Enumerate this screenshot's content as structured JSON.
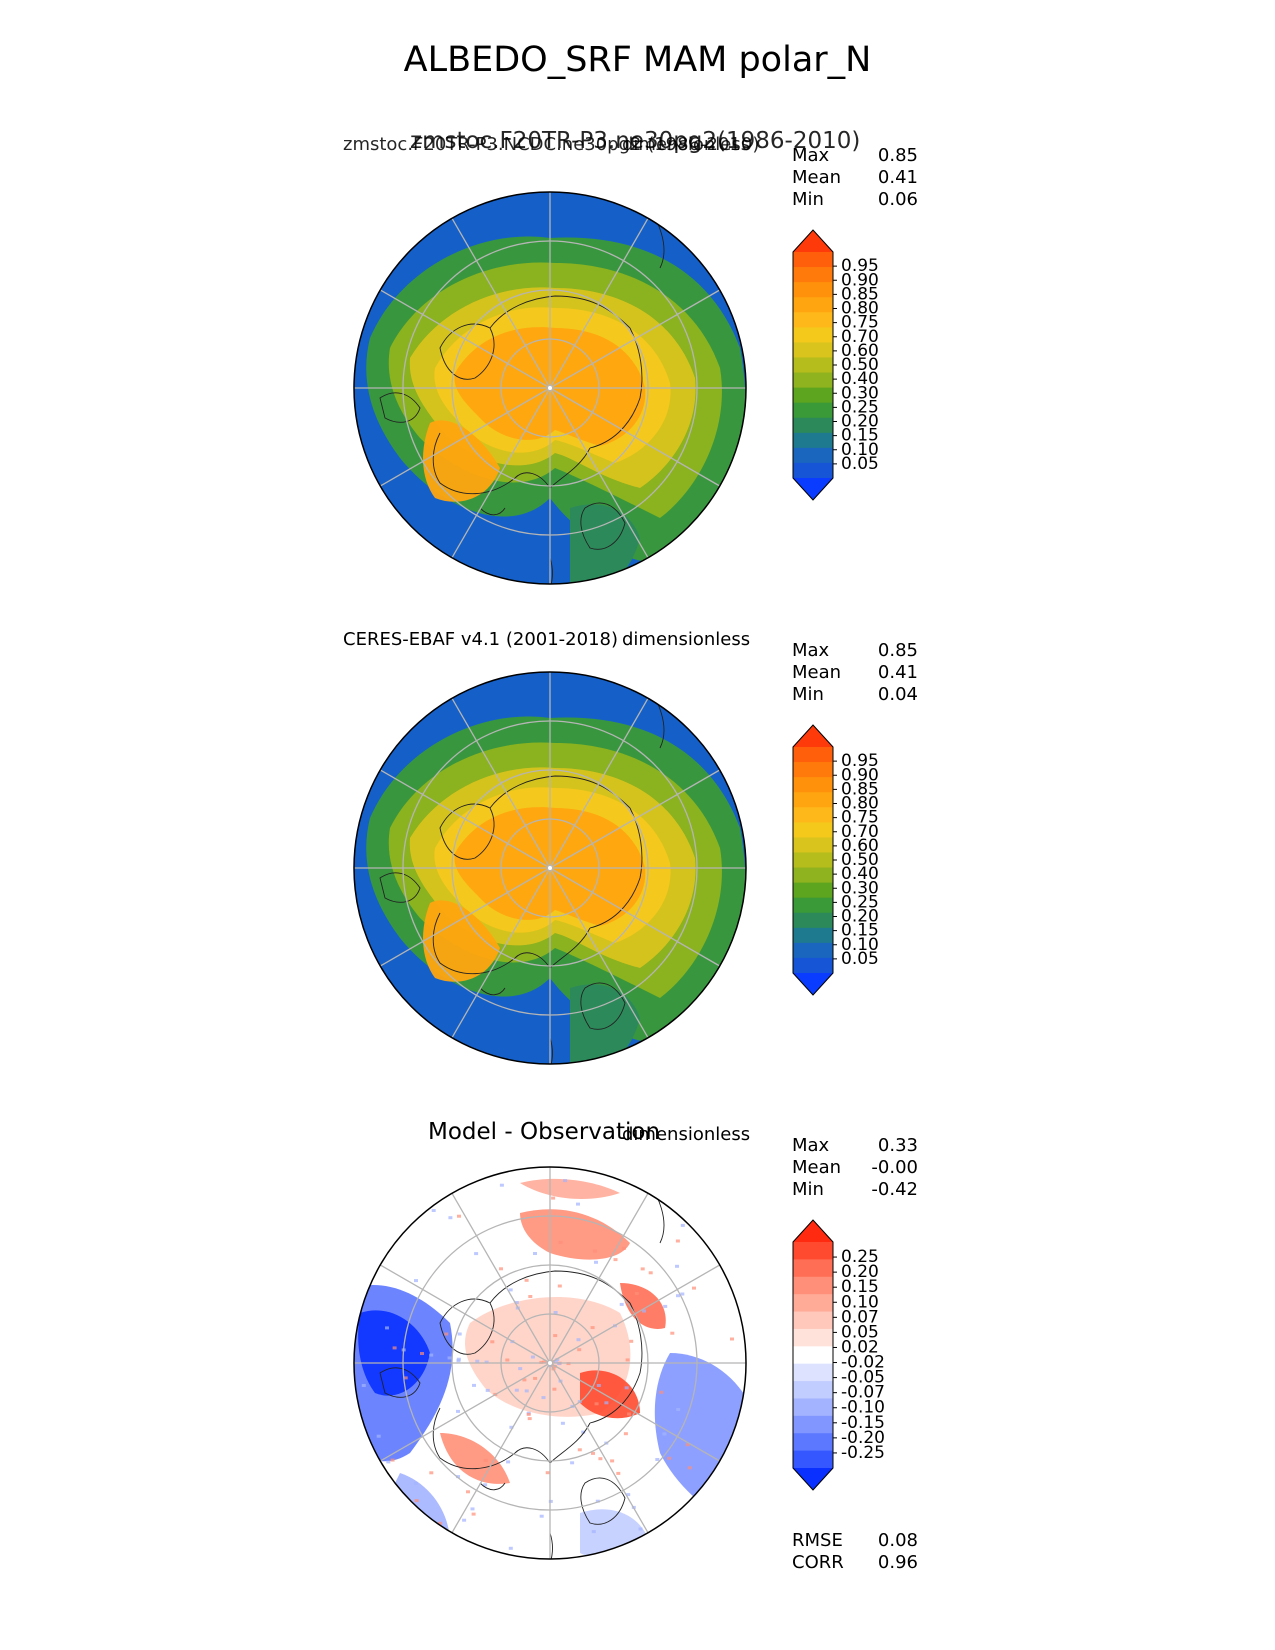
{
  "title": "ALBEDO_SRF MAM polar_N",
  "panels": [
    {
      "title": "zmstoc.F20TR-P3.ne30pg2(1986-2010)",
      "subtitle": "zmstoc.F20TR-P3.NCDC.ne30pg2 (1986-2010)",
      "units": "dimensionless",
      "stats": {
        "max_label": "Max",
        "max": "0.85",
        "mean_label": "Mean",
        "mean": "0.41",
        "min_label": "Min",
        "min": "0.06"
      },
      "colorbar": {
        "ticks": [
          "0.95",
          "0.90",
          "0.85",
          "0.80",
          "0.75",
          "0.70",
          "0.60",
          "0.50",
          "0.40",
          "0.30",
          "0.25",
          "0.20",
          "0.15",
          "0.10",
          "0.05"
        ],
        "colors": [
          "#ff3a0a",
          "#ff5f0a",
          "#ff7a0a",
          "#ff920a",
          "#ffa50f",
          "#ffb81a",
          "#f5c81c",
          "#d9c41d",
          "#b5bd1d",
          "#8fb31e",
          "#5ea51f",
          "#3a9a37",
          "#2c8a5a",
          "#1e7a8e",
          "#1a66bf",
          "#1555d6",
          "#0a3cff"
        ]
      }
    },
    {
      "title": "",
      "subtitle": "CERES-EBAF v4.1 (2001-2018)",
      "units": "dimensionless",
      "stats": {
        "max_label": "Max",
        "max": "0.85",
        "mean_label": "Mean",
        "mean": "0.41",
        "min_label": "Min",
        "min": "0.04"
      },
      "colorbar": {
        "ticks": [
          "0.95",
          "0.90",
          "0.85",
          "0.80",
          "0.75",
          "0.70",
          "0.60",
          "0.50",
          "0.40",
          "0.30",
          "0.25",
          "0.20",
          "0.15",
          "0.10",
          "0.05"
        ],
        "colors": [
          "#ff3a0a",
          "#ff5f0a",
          "#ff7a0a",
          "#ff920a",
          "#ffa50f",
          "#ffb81a",
          "#f5c81c",
          "#d9c41d",
          "#b5bd1d",
          "#8fb31e",
          "#5ea51f",
          "#3a9a37",
          "#2c8a5a",
          "#1e7a8e",
          "#1a66bf",
          "#1555d6",
          "#0a3cff"
        ]
      }
    },
    {
      "title": "Model - Observation",
      "subtitle": "",
      "units": "dimensionless",
      "stats": {
        "max_label": "Max",
        "max": "0.33",
        "mean_label": "Mean",
        "mean": "-0.00",
        "min_label": "Min",
        "min": "-0.42"
      },
      "colorbar": {
        "ticks": [
          "0.25",
          "0.20",
          "0.15",
          "0.10",
          "0.07",
          "0.05",
          "0.02",
          "-0.02",
          "-0.05",
          "-0.07",
          "-0.10",
          "-0.15",
          "-0.20",
          "-0.25"
        ],
        "colors": [
          "#ff2a10",
          "#ff4a30",
          "#ff6e55",
          "#ff8f78",
          "#ffab98",
          "#ffc8bb",
          "#ffe2da",
          "#ffffff",
          "#dde3ff",
          "#c2cdff",
          "#a3b3ff",
          "#8296ff",
          "#5c78ff",
          "#3557ff",
          "#0a30ff"
        ]
      },
      "metrics": {
        "rmse_label": "RMSE",
        "rmse": "0.08",
        "corr_label": "CORR",
        "corr": "0.96"
      }
    }
  ],
  "chart_data": [
    {
      "type": "heatmap",
      "title": "zmstoc.F20TR-P3.ne30pg2(1986-2010)",
      "projection": "north polar stereographic",
      "units": "dimensionless",
      "max": 0.85,
      "mean": 0.41,
      "min": 0.06,
      "levels": [
        0.05,
        0.1,
        0.15,
        0.2,
        0.25,
        0.3,
        0.4,
        0.5,
        0.6,
        0.7,
        0.75,
        0.8,
        0.85,
        0.9,
        0.95
      ]
    },
    {
      "type": "heatmap",
      "title": "CERES-EBAF v4.1 (2001-2018)",
      "projection": "north polar stereographic",
      "units": "dimensionless",
      "max": 0.85,
      "mean": 0.41,
      "min": 0.04,
      "levels": [
        0.05,
        0.1,
        0.15,
        0.2,
        0.25,
        0.3,
        0.4,
        0.5,
        0.6,
        0.7,
        0.75,
        0.8,
        0.85,
        0.9,
        0.95
      ]
    },
    {
      "type": "heatmap",
      "title": "Model - Observation",
      "projection": "north polar stereographic",
      "units": "dimensionless",
      "max": 0.33,
      "mean": -0.0,
      "min": -0.42,
      "rmse": 0.08,
      "corr": 0.96,
      "levels": [
        -0.25,
        -0.2,
        -0.15,
        -0.1,
        -0.07,
        -0.05,
        -0.02,
        0.02,
        0.05,
        0.07,
        0.1,
        0.15,
        0.2,
        0.25
      ]
    }
  ]
}
